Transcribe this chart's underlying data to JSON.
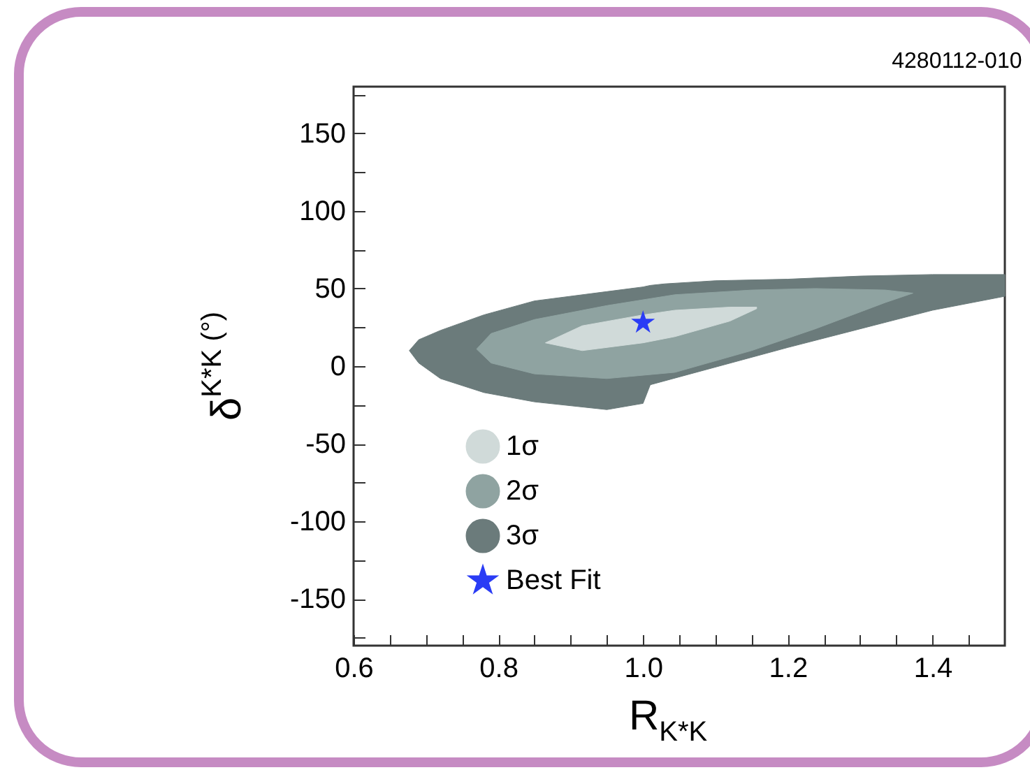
{
  "chart_data": {
    "type": "area",
    "xlabel": "R$_{K*K}$",
    "ylabel": "δ$^{K*K (°)}$",
    "annotations": [
      "4280112-010"
    ],
    "xlim": [
      0.6,
      1.5
    ],
    "ylim": [
      -180,
      180
    ],
    "xticks": [
      0.6,
      {
        "value": 0.65,
        "label": null
      },
      {
        "value": 0.7,
        "label": null
      },
      {
        "value": 0.75,
        "label": null
      },
      0.8,
      {
        "value": 0.85,
        "label": null
      },
      {
        "value": 0.9,
        "label": null
      },
      {
        "value": 0.95,
        "label": null
      },
      {
        "value": 1.0,
        "label": "1.0"
      },
      {
        "value": 1.05,
        "label": null
      },
      {
        "value": 1.1,
        "label": null
      },
      {
        "value": 1.15,
        "label": null
      },
      1.2,
      {
        "value": 1.25,
        "label": null
      },
      {
        "value": 1.3,
        "label": null
      },
      {
        "value": 1.35,
        "label": null
      },
      1.4,
      {
        "value": 1.45,
        "label": null
      }
    ],
    "yticks": [
      {
        "value": -175,
        "label": null
      },
      -150,
      {
        "value": -125,
        "label": null
      },
      -100,
      {
        "value": -75,
        "label": null
      },
      -50,
      {
        "value": -25,
        "label": null
      },
      0,
      {
        "value": 25,
        "label": null
      },
      50,
      {
        "value": 75,
        "label": null
      },
      100,
      {
        "value": 125,
        "label": null
      },
      150,
      {
        "value": 175,
        "label": null
      }
    ],
    "grid": false,
    "legend": "bottom",
    "series": [
      {
        "name": "1σ",
        "color": "#d0dad9",
        "x": [
          0.865,
          0.916,
          1.0,
          1.044,
          1.12,
          1.157,
          1.157,
          1.12,
          1.044,
          1.0,
          0.916
        ],
        "values": [
          15,
          26,
          33,
          36,
          38,
          38,
          37,
          29,
          19,
          15,
          10
        ]
      },
      {
        "name": "2σ",
        "color": "#8fa3a1",
        "x": [
          0.77,
          0.79,
          0.85,
          0.95,
          1.044,
          1.15,
          1.238,
          1.335,
          1.373,
          1.335,
          1.238,
          1.15,
          1.044,
          0.95,
          0.85,
          0.79
        ],
        "values": [
          11,
          21,
          30,
          39,
          46,
          49,
          50,
          49,
          47,
          41,
          24,
          10,
          -4,
          -8,
          -5,
          2
        ]
      },
      {
        "name": "3σ",
        "color": "#6b7b7b",
        "x": [
          0.677,
          0.69,
          0.72,
          0.78,
          0.85,
          0.95,
          1.0,
          1.01,
          1.03,
          1.1,
          1.2,
          1.3,
          1.4,
          1.5,
          1.5,
          1.4,
          1.3,
          1.2,
          1.01,
          1.0,
          0.95,
          0.85,
          0.78,
          0.72,
          0.69
        ],
        "values": [
          10,
          17,
          23,
          33,
          42,
          48,
          51,
          52,
          53,
          55,
          56,
          58,
          59,
          59,
          45,
          36,
          24,
          12,
          -12,
          -24,
          -28,
          -23,
          -17,
          -8,
          2
        ]
      },
      {
        "name": "Best Fit",
        "color": "#2a3cf5",
        "type": "scatter",
        "marker": "star",
        "x": [
          1.0
        ],
        "values": [
          28
        ]
      }
    ]
  }
}
